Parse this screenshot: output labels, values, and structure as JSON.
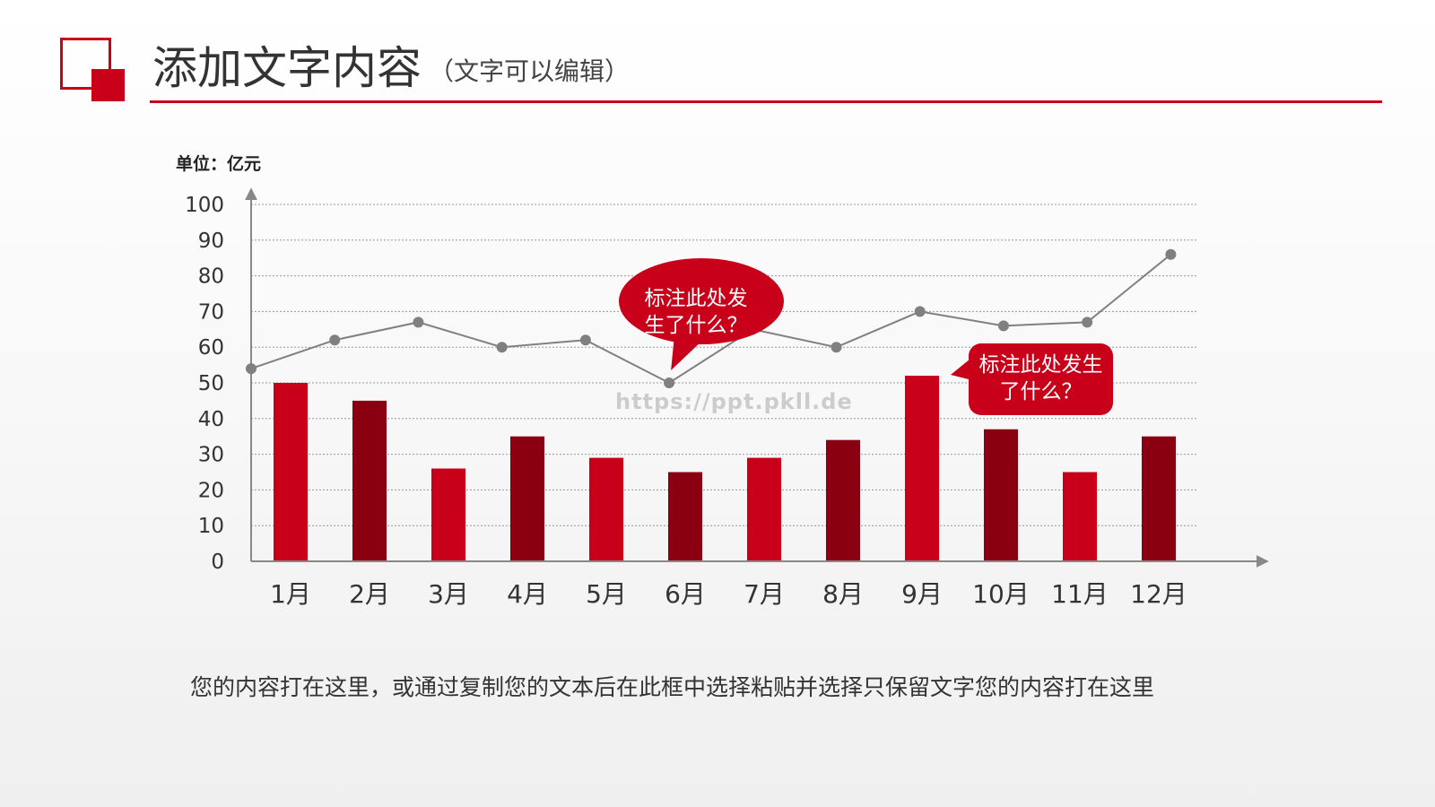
{
  "header": {
    "title": "添加文字内容",
    "subtitle": "（文字可以编辑）"
  },
  "colors": {
    "accent": "#c8001a",
    "bar_light": "#c8001a",
    "bar_dark": "#8b0010",
    "line": "#808080",
    "axis": "#888888",
    "grid": "#999999"
  },
  "chart_data": {
    "type": "bar",
    "unit_label": "单位：亿元",
    "categories": [
      "1月",
      "2月",
      "3月",
      "4月",
      "5月",
      "6月",
      "7月",
      "8月",
      "9月",
      "10月",
      "11月",
      "12月"
    ],
    "ylim": [
      0,
      100
    ],
    "yticks": [
      0,
      10,
      20,
      30,
      40,
      50,
      60,
      70,
      80,
      90,
      100
    ],
    "grid": true,
    "series": [
      {
        "type": "bar",
        "values": [
          50,
          45,
          26,
          35,
          29,
          25,
          29,
          34,
          52,
          37,
          25,
          35
        ],
        "colors": [
          "#c8001a",
          "#8b0010",
          "#c8001a",
          "#8b0010",
          "#c8001a",
          "#8b0010",
          "#c8001a",
          "#8b0010",
          "#c8001a",
          "#8b0010",
          "#c8001a",
          "#8b0010"
        ]
      },
      {
        "type": "line",
        "values": [
          54,
          62,
          67,
          60,
          62,
          50,
          65,
          60,
          70,
          66,
          67,
          86
        ]
      }
    ],
    "annotations": [
      {
        "text_line1": "标注此处发",
        "text_line2": "生了什么？",
        "category": "6月",
        "shape": "bubble"
      },
      {
        "text_line1": "标注此处发生",
        "text_line2": "了什么？",
        "category": "10月",
        "shape": "box"
      }
    ]
  },
  "watermark": "https://ppt.pkll.de",
  "body_text": "您的内容打在这里，或通过复制您的文本后在此框中选择粘贴并选择只保留文字您的内容打在这里"
}
